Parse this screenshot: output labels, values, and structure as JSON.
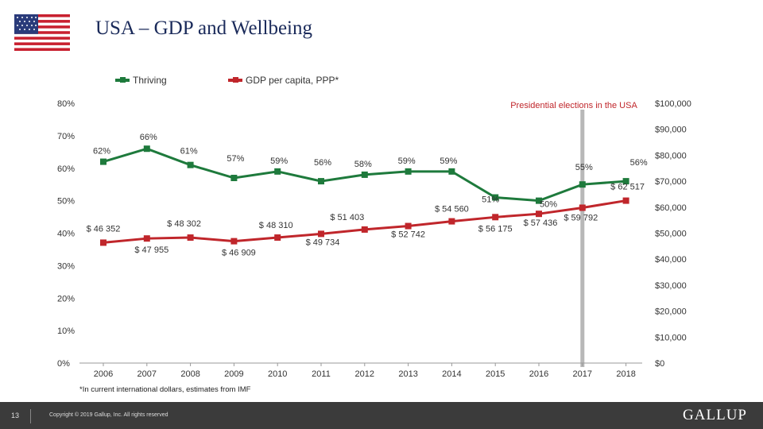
{
  "title": "USA – GDP and Wellbeing",
  "flag_icon": "us-flag-icon",
  "footnote": "*In current international dollars, estimates from IMF",
  "footer": {
    "page_number": "13",
    "copyright": "Copyright © 2019 Gallup, Inc. All rights reserved",
    "brand": "GALLUP"
  },
  "colors": {
    "thriving": "#1e7a3c",
    "gdp": "#c0262b",
    "marker_line": "#b8b8b8",
    "footer_bg": "#3b3b3b"
  },
  "chart_data": {
    "type": "line",
    "categories": [
      "2006",
      "2007",
      "2008",
      "2009",
      "2010",
      "2011",
      "2012",
      "2013",
      "2014",
      "2015",
      "2016",
      "2017",
      "2018"
    ],
    "series": [
      {
        "name": "Thriving",
        "axis": "left",
        "values": [
          62,
          66,
          61,
          57,
          59,
          56,
          58,
          59,
          59,
          51,
          50,
          55,
          56
        ],
        "labels": [
          "62%",
          "66%",
          "61%",
          "57%",
          "59%",
          "56%",
          "58%",
          "59%",
          "59%",
          "51%",
          "50%",
          "55%",
          "56%"
        ]
      },
      {
        "name": "GDP per capita, PPP*",
        "axis": "right",
        "values": [
          46352,
          47955,
          48302,
          46909,
          48310,
          49734,
          51403,
          52742,
          54560,
          56175,
          57436,
          59792,
          62517
        ],
        "labels": [
          "$ 46 352",
          "$ 47 955",
          "$ 48 302",
          "$ 46 909",
          "$ 48 310",
          "$ 49 734",
          "$ 51 403",
          "$ 52 742",
          "$ 54 560",
          "$ 56 175",
          "$ 57 436",
          "$ 59 792",
          "$ 62 517"
        ]
      }
    ],
    "left_axis": {
      "ylim": [
        0,
        80
      ],
      "ticks": [
        "0%",
        "10%",
        "20%",
        "30%",
        "40%",
        "50%",
        "60%",
        "70%",
        "80%"
      ]
    },
    "right_axis": {
      "ylim": [
        0,
        100000
      ],
      "ticks": [
        "$0",
        "$10,000",
        "$20,000",
        "$30,000",
        "$40,000",
        "$50,000",
        "$60,000",
        "$70,000",
        "$80,000",
        "$90,000",
        "$100,000"
      ]
    },
    "annotation": {
      "text": "Presidential elections in the USA",
      "at_category": "2017"
    },
    "legend": "top",
    "grid": false
  }
}
